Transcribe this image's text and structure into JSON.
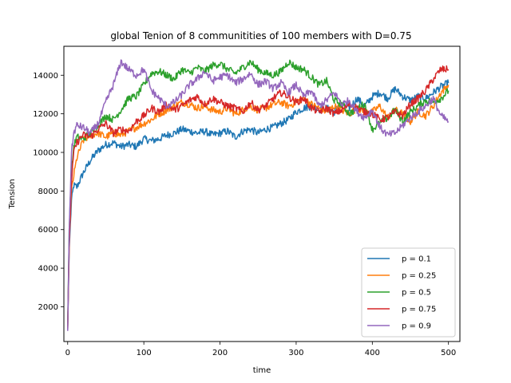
{
  "chart_data": {
    "type": "line",
    "title": "global Tenion of 8 communitities of 100 members with  D=0.75",
    "xlabel": "time",
    "ylabel": "Tension",
    "xlim": [
      -5,
      515
    ],
    "ylim": [
      200,
      15500
    ],
    "xticks": [
      0,
      100,
      200,
      300,
      400,
      500
    ],
    "yticks": [
      2000,
      4000,
      6000,
      8000,
      10000,
      12000,
      14000
    ],
    "grid": false,
    "legend_position": "lower-right",
    "series": [
      {
        "name": "p = 0.1",
        "color": "#1f77b4",
        "x": [
          0,
          2,
          5,
          8,
          12,
          20,
          30,
          40,
          50,
          60,
          70,
          80,
          90,
          100,
          110,
          120,
          130,
          140,
          150,
          160,
          170,
          180,
          190,
          200,
          210,
          220,
          230,
          240,
          250,
          260,
          270,
          280,
          290,
          300,
          310,
          320,
          330,
          340,
          350,
          360,
          370,
          380,
          390,
          400,
          410,
          420,
          430,
          440,
          450,
          460,
          470,
          480,
          490,
          500
        ],
        "y": [
          800,
          5000,
          7500,
          8300,
          8200,
          8900,
          9600,
          10100,
          10400,
          10500,
          10300,
          10400,
          10300,
          10700,
          10600,
          10700,
          10900,
          11000,
          11200,
          11100,
          11000,
          11100,
          10900,
          11000,
          11100,
          10800,
          11100,
          11200,
          11000,
          11200,
          11300,
          11500,
          11700,
          12100,
          12300,
          12400,
          12200,
          12300,
          12100,
          12500,
          12300,
          12800,
          12400,
          12900,
          13100,
          12800,
          13300,
          12900,
          12700,
          12900,
          12800,
          13100,
          13400,
          13600
        ]
      },
      {
        "name": "p = 0.25",
        "color": "#ff7f0e",
        "x": [
          0,
          2,
          5,
          8,
          12,
          20,
          30,
          40,
          50,
          60,
          70,
          80,
          90,
          100,
          110,
          120,
          130,
          140,
          150,
          160,
          170,
          180,
          190,
          200,
          210,
          220,
          230,
          240,
          250,
          260,
          270,
          280,
          290,
          300,
          310,
          320,
          330,
          340,
          350,
          360,
          370,
          380,
          390,
          400,
          410,
          420,
          430,
          440,
          450,
          460,
          470,
          480,
          490,
          500
        ],
        "y": [
          900,
          5500,
          8000,
          8800,
          9700,
          10600,
          10900,
          11000,
          10800,
          11000,
          10900,
          11100,
          11300,
          11500,
          11700,
          12000,
          12200,
          12400,
          12600,
          12500,
          12300,
          12400,
          12200,
          12100,
          12300,
          12000,
          12200,
          12400,
          12200,
          12300,
          12500,
          12600,
          12400,
          12600,
          12800,
          12500,
          12300,
          12100,
          12400,
          12200,
          12000,
          12300,
          12100,
          12100,
          12400,
          11800,
          12200,
          12000,
          11600,
          12100,
          11900,
          12400,
          13100,
          13500
        ]
      },
      {
        "name": "p = 0.5",
        "color": "#2ca02c",
        "x": [
          0,
          2,
          5,
          8,
          12,
          20,
          30,
          40,
          50,
          60,
          70,
          80,
          90,
          100,
          110,
          120,
          130,
          140,
          150,
          160,
          170,
          180,
          190,
          200,
          210,
          220,
          230,
          240,
          250,
          260,
          270,
          280,
          290,
          300,
          310,
          320,
          330,
          340,
          350,
          360,
          370,
          380,
          390,
          400,
          410,
          420,
          430,
          440,
          450,
          460,
          470,
          480,
          490,
          500
        ],
        "y": [
          1000,
          6000,
          9000,
          10300,
          10800,
          10700,
          11000,
          11400,
          11900,
          11700,
          12200,
          12800,
          12900,
          13500,
          14100,
          14200,
          14000,
          13800,
          14300,
          14100,
          14400,
          14200,
          14500,
          14600,
          14300,
          14100,
          14400,
          14700,
          14300,
          14100,
          14000,
          14200,
          14700,
          14400,
          14300,
          13900,
          13500,
          13700,
          12700,
          12500,
          12000,
          12300,
          12500,
          11200,
          11500,
          11800,
          12200,
          11600,
          12100,
          12400,
          12700,
          12600,
          12800,
          13200
        ]
      },
      {
        "name": "p = 0.75",
        "color": "#d62728",
        "x": [
          0,
          2,
          5,
          8,
          12,
          20,
          30,
          40,
          50,
          60,
          70,
          80,
          90,
          100,
          110,
          120,
          130,
          140,
          150,
          160,
          170,
          180,
          190,
          200,
          210,
          220,
          230,
          240,
          250,
          260,
          270,
          280,
          290,
          300,
          310,
          320,
          330,
          340,
          350,
          360,
          370,
          380,
          390,
          400,
          410,
          420,
          430,
          440,
          450,
          460,
          470,
          480,
          490,
          500
        ],
        "y": [
          850,
          5200,
          8500,
          10000,
          10500,
          10900,
          10800,
          11200,
          11500,
          11000,
          11200,
          11100,
          11600,
          11900,
          12300,
          12100,
          12500,
          12200,
          12400,
          12700,
          12900,
          12500,
          12800,
          12600,
          12400,
          12300,
          12100,
          12600,
          12200,
          12400,
          12800,
          13100,
          12900,
          12600,
          12800,
          12300,
          12100,
          12300,
          12000,
          12200,
          12500,
          12300,
          12100,
          12000,
          11700,
          11800,
          12100,
          11900,
          12500,
          12800,
          13200,
          13800,
          14300,
          14300
        ]
      },
      {
        "name": "p = 0.9",
        "color": "#9467bd",
        "x": [
          0,
          2,
          5,
          8,
          12,
          20,
          30,
          40,
          50,
          60,
          70,
          80,
          90,
          100,
          110,
          120,
          130,
          140,
          150,
          160,
          170,
          180,
          190,
          200,
          210,
          220,
          230,
          240,
          250,
          260,
          270,
          280,
          290,
          300,
          310,
          320,
          330,
          340,
          350,
          360,
          370,
          380,
          390,
          400,
          410,
          420,
          430,
          440,
          450,
          460,
          470,
          480,
          490,
          500
        ],
        "y": [
          750,
          6000,
          10000,
          11000,
          11400,
          11300,
          11000,
          11500,
          12600,
          13500,
          14700,
          14300,
          14000,
          14300,
          13200,
          12800,
          12400,
          12600,
          13000,
          13500,
          13800,
          14200,
          13700,
          13900,
          14000,
          13600,
          13800,
          14100,
          13500,
          13700,
          13300,
          13600,
          13100,
          13500,
          12900,
          13200,
          12400,
          12700,
          13100,
          12500,
          12700,
          12100,
          11800,
          12200,
          11300,
          10900,
          11000,
          11400,
          11800,
          12100,
          12400,
          12800,
          11900,
          11600
        ]
      }
    ]
  }
}
